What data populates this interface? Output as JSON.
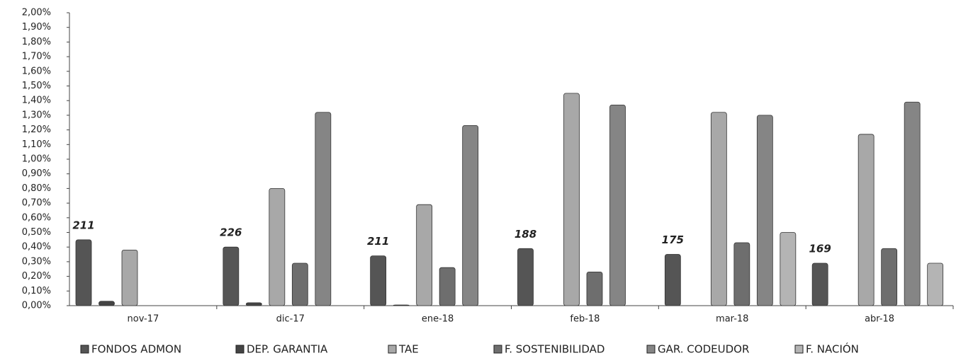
{
  "chart_data": {
    "type": "bar",
    "categories": [
      "nov-17",
      "dic-17",
      "ene-18",
      "feb-18",
      "mar-18",
      "abr-18"
    ],
    "series": [
      {
        "name": "FONDOS ADMON",
        "color": "#555555",
        "values": [
          0.45,
          0.4,
          0.34,
          0.39,
          0.35,
          0.29
        ]
      },
      {
        "name": "DEP. GARANTIA",
        "color": "#444444",
        "values": [
          0.03,
          0.02,
          0.005,
          null,
          null,
          null
        ]
      },
      {
        "name": "TAE",
        "color": "#a8a8a8",
        "values": [
          0.38,
          0.8,
          0.69,
          1.45,
          1.32,
          1.17
        ]
      },
      {
        "name": "F. SOSTENIBILIDAD",
        "color": "#6e6e6e",
        "values": [
          null,
          0.29,
          0.26,
          0.23,
          0.43,
          0.39
        ]
      },
      {
        "name": "GAR. CODEUDOR",
        "color": "#858585",
        "values": [
          null,
          1.32,
          1.23,
          1.37,
          1.3,
          1.39
        ]
      },
      {
        "name": "F. NACIÓN",
        "color": "#b4b4b4",
        "values": [
          null,
          null,
          null,
          null,
          0.5,
          0.29
        ]
      }
    ],
    "annotations": [
      "211",
      "226",
      "211",
      "188",
      "175",
      "169"
    ],
    "ylim": [
      0,
      2.0
    ],
    "yticks": [
      {
        "value": 0.0,
        "label": "0,00%"
      },
      {
        "value": 0.1,
        "label": "0,10%"
      },
      {
        "value": 0.2,
        "label": "0,20%"
      },
      {
        "value": 0.3,
        "label": "0,30%"
      },
      {
        "value": 0.4,
        "label": "0,40%"
      },
      {
        "value": 0.5,
        "label": "0,50%"
      },
      {
        "value": 0.6,
        "label": "0,60%"
      },
      {
        "value": 0.7,
        "label": "0,70%"
      },
      {
        "value": 0.8,
        "label": "0,80%"
      },
      {
        "value": 0.9,
        "label": "0,90%"
      },
      {
        "value": 1.0,
        "label": "1,00%"
      },
      {
        "value": 1.1,
        "label": "1,10%"
      },
      {
        "value": 1.2,
        "label": "1,20%"
      },
      {
        "value": 1.3,
        "label": "1,30%"
      },
      {
        "value": 1.4,
        "label": "1,40%"
      },
      {
        "value": 1.5,
        "label": "1,50%"
      },
      {
        "value": 1.6,
        "label": "1,60%"
      },
      {
        "value": 1.7,
        "label": "1,70%"
      },
      {
        "value": 1.8,
        "label": "1,80%"
      },
      {
        "value": 1.9,
        "label": "1,90%"
      },
      {
        "value": 2.0,
        "label": "2,00%"
      }
    ],
    "grid": false,
    "legend": "bottom"
  }
}
